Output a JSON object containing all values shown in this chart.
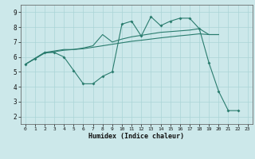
{
  "xlabel": "Humidex (Indice chaleur)",
  "xlim": [
    -0.5,
    23.5
  ],
  "ylim": [
    1.5,
    9.5
  ],
  "xticks": [
    0,
    1,
    2,
    3,
    4,
    5,
    6,
    7,
    8,
    9,
    10,
    11,
    12,
    13,
    14,
    15,
    16,
    17,
    18,
    19,
    20,
    21,
    22,
    23
  ],
  "yticks": [
    2,
    3,
    4,
    5,
    6,
    7,
    8,
    9
  ],
  "bg_color": "#cce8ea",
  "grid_color": "#aad4d6",
  "line_color": "#2a7c6e",
  "line1_x": [
    0,
    1,
    2,
    3,
    4,
    5,
    6,
    7,
    8,
    9,
    10,
    11,
    12,
    13,
    14,
    15,
    16,
    17,
    18,
    19,
    20,
    21,
    22
  ],
  "line1_y": [
    5.5,
    5.9,
    6.3,
    6.3,
    6.0,
    5.1,
    4.2,
    4.2,
    4.7,
    5.0,
    8.2,
    8.4,
    7.4,
    8.7,
    8.1,
    8.4,
    8.6,
    8.6,
    7.9,
    5.6,
    3.7,
    2.4,
    2.4
  ],
  "line2_x": [
    0,
    2,
    3,
    4,
    5,
    6,
    7,
    8,
    9,
    10,
    11,
    12,
    13,
    14,
    15,
    16,
    17,
    18,
    19,
    20
  ],
  "line2_y": [
    5.5,
    6.3,
    6.4,
    6.5,
    6.5,
    6.6,
    6.75,
    7.5,
    7.0,
    7.2,
    7.35,
    7.45,
    7.55,
    7.65,
    7.7,
    7.75,
    7.8,
    7.9,
    7.5,
    7.5
  ],
  "line3_x": [
    0,
    2,
    3,
    4,
    5,
    6,
    7,
    8,
    9,
    10,
    11,
    12,
    13,
    14,
    15,
    16,
    17,
    18,
    19,
    20
  ],
  "line3_y": [
    5.5,
    6.25,
    6.35,
    6.45,
    6.5,
    6.55,
    6.65,
    6.75,
    6.85,
    6.95,
    7.05,
    7.12,
    7.2,
    7.28,
    7.35,
    7.42,
    7.48,
    7.55,
    7.5,
    7.5
  ]
}
